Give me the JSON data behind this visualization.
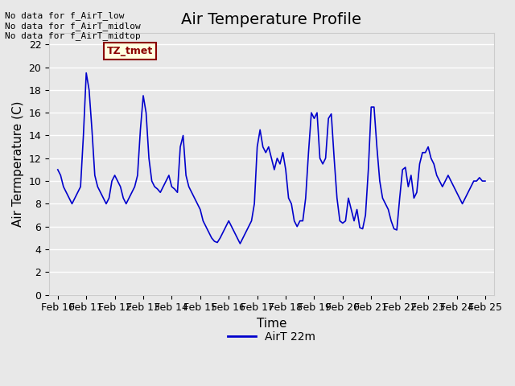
{
  "title": "Air Temperature Profile",
  "xlabel": "Time",
  "ylabel": "Air Termperature (C)",
  "legend_label": "AirT 22m",
  "no_data_lines": [
    "No data for f_AirT_low",
    "No data for f_AirT_midlow",
    "No data for f_AirT_midtop"
  ],
  "tz_label": "TZ_tmet",
  "x_tick_labels": [
    "Feb 10",
    "Feb 11",
    "Feb 12",
    "Feb 13",
    "Feb 14",
    "Feb 15",
    "Feb 16",
    "Feb 17",
    "Feb 18",
    "Feb 19",
    "Feb 20",
    "Feb 21",
    "Feb 22",
    "Feb 23",
    "Feb 24",
    "Feb 25"
  ],
  "ylim": [
    0,
    23
  ],
  "yticks": [
    0,
    2,
    4,
    6,
    8,
    10,
    12,
    14,
    16,
    18,
    20,
    22
  ],
  "line_color": "#0000cc",
  "background_color": "#e8e8e8",
  "plot_bg_color": "#e8e8e8",
  "grid_color": "#ffffff",
  "title_fontsize": 14,
  "axis_label_fontsize": 11,
  "tick_fontsize": 9,
  "x_values": [
    0,
    0.1,
    0.2,
    0.3,
    0.4,
    0.5,
    0.6,
    0.7,
    0.8,
    0.9,
    1.0,
    1.1,
    1.2,
    1.3,
    1.4,
    1.5,
    1.6,
    1.7,
    1.8,
    1.9,
    2.0,
    2.1,
    2.2,
    2.3,
    2.4,
    2.5,
    2.6,
    2.7,
    2.8,
    2.9,
    3.0,
    3.1,
    3.2,
    3.3,
    3.4,
    3.5,
    3.6,
    3.7,
    3.8,
    3.9,
    4.0,
    4.1,
    4.2,
    4.3,
    4.4,
    4.5,
    4.6,
    4.7,
    4.8,
    4.9,
    5.0,
    5.1,
    5.2,
    5.3,
    5.4,
    5.5,
    5.6,
    5.7,
    5.8,
    5.9,
    6.0,
    6.1,
    6.2,
    6.3,
    6.4,
    6.5,
    6.6,
    6.7,
    6.8,
    6.9,
    7.0,
    7.1,
    7.2,
    7.3,
    7.4,
    7.5,
    7.6,
    7.7,
    7.8,
    7.9,
    8.0,
    8.1,
    8.2,
    8.3,
    8.4,
    8.5,
    8.6,
    8.7,
    8.8,
    8.9,
    9.0,
    9.1,
    9.2,
    9.3,
    9.4,
    9.5,
    9.6,
    9.7,
    9.8,
    9.9,
    10.0,
    10.1,
    10.2,
    10.3,
    10.4,
    10.5,
    10.6,
    10.7,
    10.8,
    10.9,
    11.0,
    11.1,
    11.2,
    11.3,
    11.4,
    11.5,
    11.6,
    11.7,
    11.8,
    11.9,
    12.0,
    12.1,
    12.2,
    12.3,
    12.4,
    12.5,
    12.6,
    12.7,
    12.8,
    12.9,
    13.0,
    13.1,
    13.2,
    13.3,
    13.4,
    13.5,
    13.6,
    13.7,
    13.8,
    13.9,
    14.0,
    14.1,
    14.2,
    14.3,
    14.4,
    14.5,
    14.6,
    14.7,
    14.8,
    14.9,
    15.0
  ],
  "y_values": [
    11.0,
    10.5,
    9.5,
    9.0,
    8.5,
    8.0,
    8.5,
    9.0,
    9.5,
    14.0,
    19.5,
    18.0,
    14.5,
    10.5,
    9.5,
    9.0,
    8.5,
    8.0,
    8.5,
    10.0,
    10.5,
    10.0,
    9.5,
    8.5,
    8.0,
    8.5,
    9.0,
    9.5,
    10.5,
    14.5,
    17.5,
    16.0,
    12.0,
    10.0,
    9.5,
    9.3,
    9.0,
    9.5,
    10.0,
    10.5,
    9.5,
    9.3,
    9.0,
    13.0,
    14.0,
    10.5,
    9.5,
    9.0,
    8.5,
    8.0,
    7.5,
    6.5,
    6.0,
    5.5,
    5.0,
    4.7,
    4.6,
    5.0,
    5.5,
    6.0,
    6.5,
    6.0,
    5.5,
    5.0,
    4.5,
    5.0,
    5.5,
    6.0,
    6.5,
    8.0,
    13.0,
    14.5,
    13.0,
    12.5,
    13.0,
    12.0,
    11.0,
    12.0,
    11.5,
    12.5,
    11.0,
    8.5,
    8.0,
    6.5,
    6.0,
    6.5,
    6.5,
    8.5,
    12.5,
    16.0,
    15.5,
    16.0,
    12.0,
    11.5,
    12.0,
    15.5,
    15.9,
    12.0,
    8.5,
    6.5,
    6.3,
    6.5,
    8.5,
    7.5,
    6.5,
    7.5,
    5.9,
    5.8,
    7.0,
    11.0,
    16.5,
    16.5,
    13.0,
    10.0,
    8.5,
    8.0,
    7.5,
    6.5,
    5.8,
    5.7,
    8.5,
    11.0,
    11.2,
    9.5,
    10.5,
    8.5,
    9.0,
    11.5,
    12.5,
    12.5,
    13.0,
    12.0,
    11.5,
    10.5,
    10.0,
    9.5,
    10.0,
    10.5,
    10.0,
    9.5,
    9.0,
    8.5,
    8.0,
    8.5,
    9.0,
    9.5,
    10.0,
    10.0,
    10.3,
    10.0,
    10.0
  ]
}
